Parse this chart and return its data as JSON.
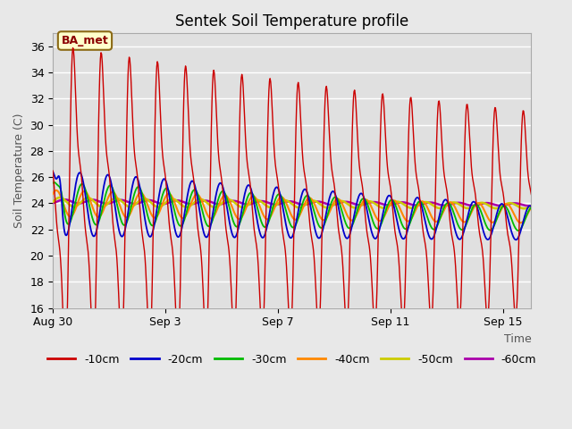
{
  "title": "Sentek Soil Temperature profile",
  "xlabel": "Time",
  "ylabel": "Soil Temperature (C)",
  "ylim": [
    16,
    37
  ],
  "yticks": [
    16,
    18,
    20,
    22,
    24,
    26,
    28,
    30,
    32,
    34,
    36
  ],
  "n_days": 17,
  "n_points_per_day": 48,
  "annotation_text": "BA_met",
  "colors": {
    "-10cm": "#cc0000",
    "-20cm": "#0000cc",
    "-30cm": "#00bb00",
    "-40cm": "#ff8800",
    "-50cm": "#cccc00",
    "-60cm": "#aa00aa"
  },
  "xtick_labels": [
    "Aug 30",
    "Sep 3",
    "Sep 7",
    "Sep 11",
    "Sep 15"
  ],
  "xtick_positions": [
    0,
    4,
    8,
    12,
    16
  ],
  "figsize": [
    6.4,
    4.8
  ],
  "dpi": 100
}
